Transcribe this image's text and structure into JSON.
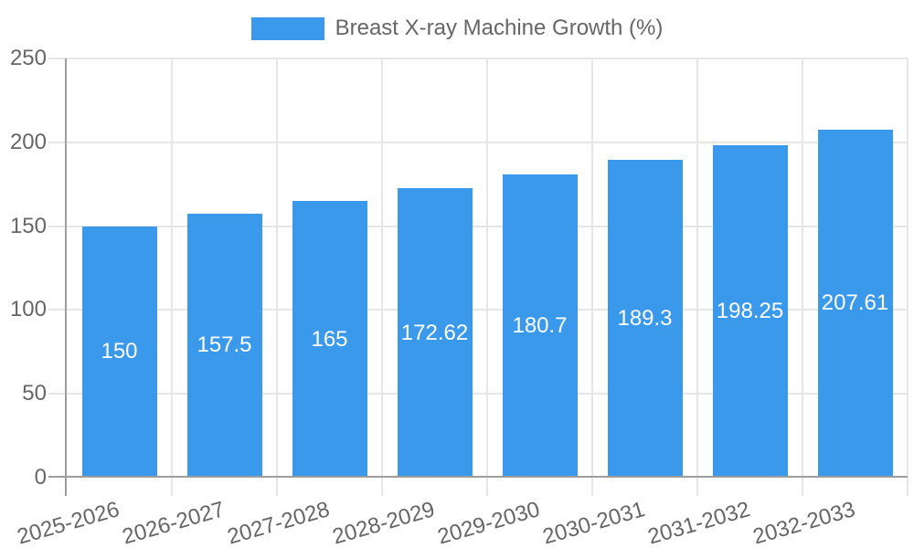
{
  "colors": {
    "bar": "#3B99EC",
    "grid": "#E6E6E6",
    "axis": "#9E9E9E",
    "text": "#666666",
    "value_label": "#FFFFFF",
    "background": "#FFFFFF"
  },
  "legend": {
    "label": "Breast X-ray Machine Growth (%)",
    "position": "top"
  },
  "chart_data": {
    "type": "bar",
    "title": "Breast X-ray Machine Growth (%)",
    "categories": [
      "2025-2026",
      "2026-2027",
      "2027-2028",
      "2028-2029",
      "2029-2030",
      "2030-2031",
      "2031-2032",
      "2032-2033"
    ],
    "values": [
      150,
      157.5,
      165,
      172.62,
      180.7,
      189.3,
      198.25,
      207.61
    ],
    "value_labels": [
      "150",
      "157.5",
      "165",
      "172.62",
      "180.7",
      "189.3",
      "198.25",
      "207.61"
    ],
    "xlabel": "",
    "ylabel": "",
    "ylim": [
      0,
      250
    ],
    "yticks": [
      0,
      50,
      100,
      150,
      200,
      250
    ],
    "grid": true,
    "legend_position": "top",
    "bar_labels_inside": true,
    "x_tick_rotation_deg": -16
  }
}
